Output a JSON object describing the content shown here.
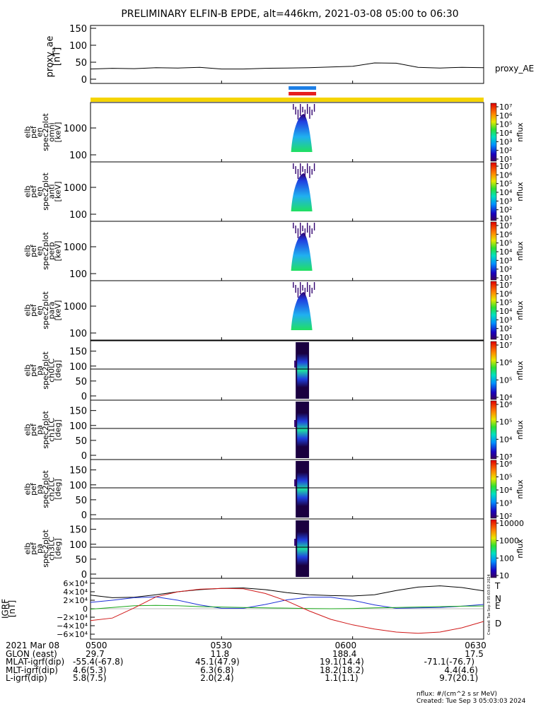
{
  "title": "PRELIMINARY ELFIN-B EPDE, alt=446km, 2021-03-08 05:00 to 06:30",
  "colors": {
    "state_bar": "#f5d400",
    "marker_blue": "#1e7fe6",
    "marker_red": "#e61e1e",
    "bx": "#000000",
    "by": "#1b2fd6",
    "bz": "#1aa81a",
    "bt": "#d01818"
  },
  "chart_data": {
    "type": "heatmap",
    "time_range": [
      "2021-03-08 05:00",
      "2021-03-08 06:30"
    ],
    "x_ticks": [
      "0500",
      "0530",
      "0600",
      "0630"
    ],
    "active_interval": [
      "05:46",
      "05:51"
    ],
    "panels": [
      {
        "kind": "line",
        "ylabel": [
          "proxy_ae",
          "[nT]"
        ],
        "ylim": [
          0,
          150
        ],
        "yticks": [
          "150",
          "100",
          "50",
          "0"
        ],
        "legend": "proxy_AE",
        "series": [
          {
            "name": "proxy_AE",
            "x_min": [
              0,
              5,
              10,
              15,
              20,
              25,
              30,
              35,
              40,
              45,
              50,
              55,
              60,
              65,
              70,
              75,
              80,
              85,
              90
            ],
            "y": [
              30,
              32,
              31,
              34,
              33,
              35,
              30,
              30,
              32,
              33,
              34,
              36,
              38,
              48,
              47,
              35,
              33,
              35,
              34
            ]
          }
        ]
      },
      {
        "kind": "spectrogram",
        "ylabel": [
          "elb",
          "pef",
          "en",
          "spec2plot",
          "omni",
          "[keV]"
        ],
        "yticks": [
          "1000",
          "100"
        ],
        "colorbar_label": "nflux",
        "colorbar_ticks": [
          "10⁷",
          "10⁶",
          "10⁵",
          "10⁴",
          "10³",
          "10²",
          "10¹"
        ]
      },
      {
        "kind": "spectrogram",
        "ylabel": [
          "elb",
          "pef",
          "en",
          "spec2plot",
          "anti",
          "[keV]"
        ],
        "yticks": [
          "1000",
          "100"
        ],
        "colorbar_label": "nflux",
        "colorbar_ticks": [
          "10⁷",
          "10⁶",
          "10⁵",
          "10⁴",
          "10³",
          "10²",
          "10¹"
        ]
      },
      {
        "kind": "spectrogram",
        "ylabel": [
          "elb",
          "pef",
          "en",
          "spec2plot",
          "perp",
          "[keV]"
        ],
        "yticks": [
          "1000",
          "100"
        ],
        "colorbar_label": "nflux",
        "colorbar_ticks": [
          "10⁷",
          "10⁶",
          "10⁵",
          "10⁴",
          "10³",
          "10²",
          "10¹"
        ]
      },
      {
        "kind": "spectrogram",
        "ylabel": [
          "elb",
          "pef",
          "en",
          "spec2plot",
          "para",
          "[keV]"
        ],
        "yticks": [
          "1000",
          "100"
        ],
        "colorbar_label": "nflux",
        "colorbar_ticks": [
          "10⁷",
          "10⁶",
          "10⁵",
          "10⁴",
          "10³",
          "10²",
          "10¹"
        ]
      },
      {
        "kind": "spectrogram",
        "ylabel": [
          "elb",
          "pef",
          "pa",
          "spec2plot",
          "ch0LC",
          "[deg]"
        ],
        "yticks": [
          "150",
          "100",
          "50",
          "0"
        ],
        "colorbar_label": "nflux",
        "colorbar_ticks": [
          "10⁷",
          "10⁶",
          "10⁵",
          "10⁴"
        ]
      },
      {
        "kind": "spectrogram",
        "ylabel": [
          "elb",
          "pef",
          "pa",
          "spec2plot",
          "ch1LC",
          "[deg]"
        ],
        "yticks": [
          "150",
          "100",
          "50",
          "0"
        ],
        "colorbar_label": "nflux",
        "colorbar_ticks": [
          "10⁶",
          "10⁵",
          "10⁴",
          "10³"
        ]
      },
      {
        "kind": "spectrogram",
        "ylabel": [
          "elb",
          "pef",
          "pa",
          "spec2plot",
          "ch2LC",
          "[deg]"
        ],
        "yticks": [
          "150",
          "100",
          "50",
          "0"
        ],
        "colorbar_label": "nflux",
        "colorbar_ticks": [
          "10⁶",
          "10⁵",
          "10⁴",
          "10³",
          "10²"
        ]
      },
      {
        "kind": "spectrogram",
        "ylabel": [
          "elb",
          "pef",
          "pa",
          "spec2plot",
          "ch3LC",
          "[deg]"
        ],
        "yticks": [
          "150",
          "100",
          "50",
          "0"
        ],
        "colorbar_label": "nflux",
        "colorbar_ticks": [
          "10000",
          "1000",
          "100",
          "10"
        ]
      },
      {
        "kind": "line",
        "ylabel": [
          "IGRF",
          "[nT]"
        ],
        "ylim": [
          -65000,
          65000
        ],
        "yticks": [
          "6×10⁴",
          "4×10⁴",
          "2×10⁴",
          "0",
          "−2×10⁴",
          "−4×10⁴",
          "−6×10⁴"
        ],
        "series": [
          {
            "name": "T",
            "x_min": [
              0,
              5,
              10,
              15,
              20,
              25,
              30,
              35,
              40,
              45,
              50,
              55,
              60,
              65,
              70,
              75,
              80,
              85,
              90
            ],
            "y": [
              32000,
              26000,
              27000,
              33000,
              40000,
              45000,
              48000,
              49000,
              45000,
              38000,
              33000,
              31000,
              30000,
              33000,
              43000,
              51000,
              54000,
              50000,
              42000
            ]
          },
          {
            "name": "N",
            "x_min": [
              0,
              5,
              10,
              15,
              20,
              25,
              30,
              35,
              40,
              45,
              50,
              55,
              60,
              65,
              70,
              75,
              80,
              85,
              90
            ],
            "y": [
              15000,
              20000,
              26000,
              28000,
              20000,
              9000,
              1000,
              1000,
              10000,
              21000,
              27000,
              27000,
              20000,
              9000,
              1000,
              2000,
              3000,
              6000,
              10000
            ]
          },
          {
            "name": "E",
            "x_min": [
              0,
              5,
              10,
              15,
              20,
              25,
              30,
              35,
              40,
              45,
              50,
              55,
              60,
              65,
              70,
              75,
              80,
              85,
              90
            ],
            "y": [
              -1000,
              3000,
              7000,
              8000,
              7000,
              5000,
              4000,
              3000,
              2000,
              1500,
              500,
              0,
              500,
              2000,
              3000,
              4000,
              5000,
              6000,
              6500
            ]
          },
          {
            "name": "D",
            "x_min": [
              0,
              5,
              10,
              15,
              20,
              25,
              30,
              35,
              40,
              45,
              50,
              55,
              60,
              65,
              70,
              75,
              80,
              85,
              90
            ],
            "y": [
              -28000,
              -22000,
              2000,
              28000,
              40000,
              46000,
              48000,
              47000,
              36000,
              18000,
              -5000,
              -25000,
              -38000,
              -48000,
              -55000,
              -58000,
              -55000,
              -45000,
              -30000
            ]
          }
        ],
        "legend": [
          "T",
          "N",
          "E",
          "D"
        ]
      }
    ]
  },
  "footer": {
    "rows": [
      {
        "label": "2021 Mar 08",
        "values": [
          "0500",
          "0530",
          "0600",
          "0630"
        ]
      },
      {
        "label": "GLON (east)",
        "values": [
          "29.7",
          "11.8",
          "188.4",
          "17.5"
        ]
      },
      {
        "label": "MLAT-igrf(dip)",
        "values": [
          "-55.4(-67.8)",
          "45.1(47.9)",
          "19.1(14.4)",
          "-71.1(-76.7)"
        ]
      },
      {
        "label": "MLT-igrf(dip)",
        "values": [
          "4.6(5.3)",
          "6.3(6.8)",
          "18.2(18.2)",
          "4.4(4.6)"
        ]
      },
      {
        "label": "L-igrf(dip)",
        "values": [
          "5.8(7.5)",
          "2.0(2.4)",
          "1.1(1.1)",
          "9.7(20.1)"
        ]
      }
    ],
    "units_note": "nflux: #/(cm^2 s sr MeV)",
    "created": "Created: Tue Sep  3 05:03:03 2024"
  }
}
